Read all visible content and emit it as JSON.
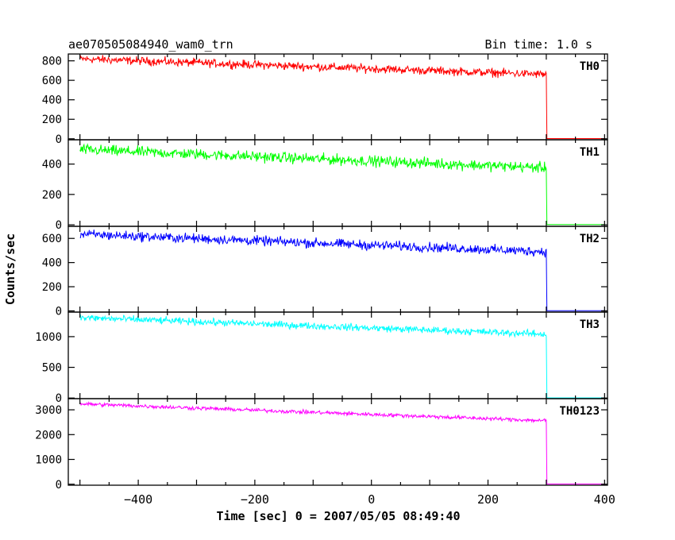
{
  "header": {
    "title": "ae070505084940_wam0_trn",
    "bin_time": "Bin time: 1.0 s"
  },
  "axes": {
    "xlabel": "Time [sec] 0 = 2007/05/05 08:49:40",
    "ylabel": "Counts/sec",
    "x_ticks": [
      "−400",
      "−200",
      "0",
      "200",
      "400"
    ]
  },
  "chart_data": {
    "type": "line",
    "x_range": [
      -520,
      405
    ],
    "x_unit": "sec",
    "bin_time_s": 1.0,
    "x_tick_values": [
      -400,
      -200,
      0,
      200,
      400
    ],
    "cutoff_x": 300,
    "panels": [
      {
        "name": "TH0",
        "color": "#ff0000",
        "ylim": [
          -10,
          870
        ],
        "y_ticks": [
          0,
          200,
          400,
          600,
          800
        ],
        "y_tick_labels": [
          "0",
          "200",
          "400",
          "600",
          "800"
        ],
        "start_level": 820,
        "end_level": 660,
        "noise": 30,
        "after_level": 2
      },
      {
        "name": "TH1",
        "color": "#00ff00",
        "ylim": [
          -10,
          560
        ],
        "y_ticks": [
          0,
          200,
          400
        ],
        "y_tick_labels": [
          "0",
          "200",
          "400"
        ],
        "start_level": 495,
        "end_level": 375,
        "noise": 25,
        "after_level": 2
      },
      {
        "name": "TH2",
        "color": "#0000ff",
        "ylim": [
          -10,
          700
        ],
        "y_ticks": [
          0,
          200,
          400,
          600
        ],
        "y_tick_labels": [
          "0",
          "200",
          "400",
          "600"
        ],
        "start_level": 635,
        "end_level": 490,
        "noise": 28,
        "after_level": 2
      },
      {
        "name": "TH3",
        "color": "#00ffff",
        "ylim": [
          -10,
          1400
        ],
        "y_ticks": [
          0,
          500,
          1000
        ],
        "y_tick_labels": [
          "0",
          "500",
          "1000"
        ],
        "start_level": 1310,
        "end_level": 1040,
        "noise": 40,
        "after_level": 3
      },
      {
        "name": "TH0123",
        "color": "#ff00ff",
        "ylim": [
          -40,
          3450
        ],
        "y_ticks": [
          0,
          1000,
          2000,
          3000
        ],
        "y_tick_labels": [
          "0",
          "1000",
          "2000",
          "3000"
        ],
        "start_level": 3240,
        "end_level": 2560,
        "noise": 55,
        "after_level": 8
      }
    ]
  }
}
